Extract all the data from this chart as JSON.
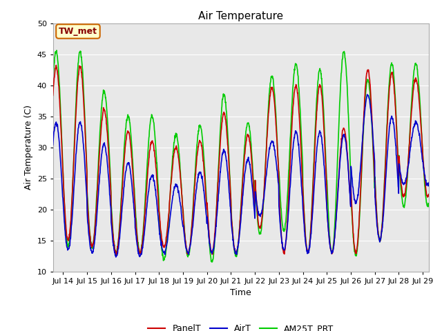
{
  "title": "Air Temperature",
  "ylabel": "Air Temperature (C)",
  "xlabel": "Time",
  "ylim": [
    10,
    50
  ],
  "xlim_start": 13.58,
  "xlim_end": 29.25,
  "yticks": [
    10,
    15,
    20,
    25,
    30,
    35,
    40,
    45,
    50
  ],
  "xtick_positions": [
    14,
    15,
    16,
    17,
    18,
    19,
    20,
    21,
    22,
    23,
    24,
    25,
    26,
    27,
    28,
    29
  ],
  "xtick_labels": [
    "Jul 14",
    "Jul 15",
    "Jul 16",
    "Jul 17",
    "Jul 18",
    "Jul 19",
    "Jul 20",
    "Jul 21",
    "Jul 22",
    "Jul 23",
    "Jul 24",
    "Jul 25",
    "Jul 26",
    "Jul 27",
    "Jul 28",
    "Jul 29"
  ],
  "panel_color": "#cc0000",
  "air_color": "#0000cc",
  "am25t_color": "#00cc00",
  "background_color": "#e8e8e8",
  "plot_bg_top": "#d8d8d8",
  "grid_color": "#ffffff",
  "label_box_color": "#ffffcc",
  "label_box_edge": "#cc6600",
  "label_text": "TW_met",
  "title_fontsize": 11,
  "axis_label_fontsize": 9,
  "tick_fontsize": 8,
  "legend_labels": [
    "PanelT",
    "AirT",
    "AM25T_PRT"
  ],
  "legend_colors": [
    "#cc0000",
    "#0000cc",
    "#00cc00"
  ],
  "linewidth": 1.2,
  "figsize": [
    6.4,
    4.8
  ],
  "dpi": 100
}
